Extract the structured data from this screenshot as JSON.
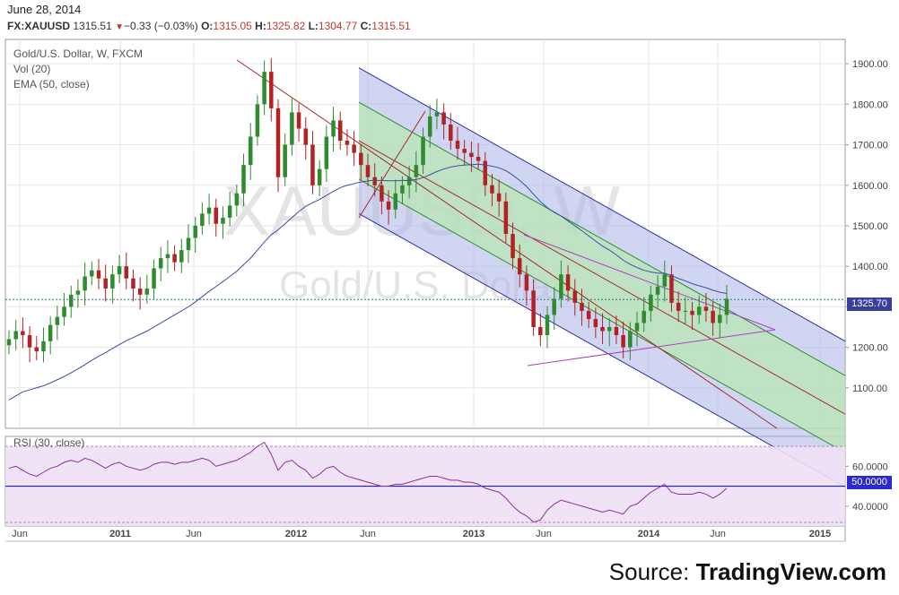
{
  "header": {
    "date": "June 28, 2014",
    "symbol": "FX:XAUUSD",
    "last": "1315.51",
    "change": "−0.33 (−0.03%)",
    "open_label": "O:",
    "open": "1315.05",
    "high_label": "H:",
    "high": "1325.82",
    "low_label": "L:",
    "low": "1304.77",
    "close_label": "C:",
    "close": "1315.51"
  },
  "legend": {
    "title": "Gold/U.S. Dollar, W, FXCM",
    "vol": "Vol (20)",
    "ema": "EMA (50, close)",
    "rsi": "RSI (30, close)"
  },
  "watermark": {
    "big": "XAUUSD, W",
    "small": "Gold/U.S. Dollar"
  },
  "price_tag": "1325.70",
  "rsi_tag": "50.0000",
  "source": {
    "prefix": "Source: ",
    "brand": "TradingView.com"
  },
  "colors": {
    "up": "#2e8b2e",
    "down": "#b22222",
    "ema": "#3a4fa0",
    "rsi": "#8e2b9e",
    "channel_outer": "#2c2ca8",
    "channel_inner": "#2e8b2e",
    "trend": "#a52a2a",
    "triangle": "#b040c0"
  },
  "chart_data": [
    {
      "type": "candlestick",
      "title": "Gold/U.S. Dollar, W, FXCM",
      "x_ticks": [
        "Jun",
        "2011",
        "Jun",
        "2012",
        "Jun",
        "2013",
        "Jun",
        "2014",
        "Jun",
        "2015"
      ],
      "y_ticks": [
        "1100.00",
        "1200.00",
        "1300.00",
        "1400.00",
        "1500.00",
        "1600.00",
        "1700.00",
        "1800.00",
        "1900.00"
      ],
      "ylim": [
        1000,
        1960
      ],
      "closes": [
        1220,
        1240,
        1230,
        1200,
        1190,
        1215,
        1255,
        1275,
        1300,
        1330,
        1340,
        1375,
        1390,
        1370,
        1345,
        1380,
        1400,
        1370,
        1345,
        1330,
        1345,
        1395,
        1420,
        1430,
        1410,
        1440,
        1470,
        1500,
        1530,
        1545,
        1505,
        1520,
        1550,
        1580,
        1650,
        1720,
        1800,
        1880,
        1790,
        1620,
        1700,
        1780,
        1740,
        1700,
        1600,
        1640,
        1720,
        1760,
        1710,
        1700,
        1680,
        1650,
        1620,
        1600,
        1560,
        1540,
        1580,
        1600,
        1620,
        1650,
        1720,
        1770,
        1780,
        1750,
        1710,
        1690,
        1680,
        1670,
        1660,
        1600,
        1580,
        1560,
        1480,
        1420,
        1380,
        1340,
        1250,
        1230,
        1280,
        1320,
        1380,
        1340,
        1310,
        1290,
        1270,
        1250,
        1240,
        1250,
        1230,
        1200,
        1240,
        1260,
        1290,
        1330,
        1350,
        1380,
        1310,
        1290,
        1290,
        1280,
        1300,
        1290,
        1260,
        1280,
        1320
      ],
      "series": [
        {
          "name": "EMA (50, close)",
          "values": [
            1070,
            1080,
            1090,
            1095,
            1100,
            1105,
            1112,
            1120,
            1128,
            1137,
            1147,
            1157,
            1168,
            1178,
            1187,
            1197,
            1207,
            1216,
            1224,
            1232,
            1240,
            1250,
            1260,
            1270,
            1280,
            1290,
            1300,
            1312,
            1325,
            1338,
            1350,
            1362,
            1375,
            1388,
            1404,
            1420,
            1440,
            1460,
            1478,
            1490,
            1505,
            1520,
            1535,
            1548,
            1557,
            1565,
            1575,
            1585,
            1594,
            1600,
            1604,
            1608,
            1611,
            1612,
            1612,
            1611,
            1611,
            1612,
            1612,
            1614,
            1619,
            1626,
            1634,
            1640,
            1645,
            1648,
            1650,
            1651,
            1652,
            1650,
            1647,
            1643,
            1636,
            1625,
            1612,
            1597,
            1578,
            1560,
            1545,
            1533,
            1524,
            1512,
            1500,
            1488,
            1475,
            1462,
            1450,
            1440,
            1428,
            1415,
            1405,
            1397,
            1390,
            1386,
            1383,
            1383,
            1377,
            1370,
            1364,
            1357,
            1352,
            1347,
            1341,
            1336,
            1333
          ]
        }
      ]
    },
    {
      "type": "line",
      "title": "RSI (30, close)",
      "y_ticks": [
        "40.0000",
        "60.0000"
      ],
      "ylim": [
        30,
        75
      ],
      "series": [
        {
          "name": "RSI (30, close)",
          "values": [
            59,
            60,
            58,
            56,
            55,
            57,
            59,
            60,
            62,
            63,
            62,
            64,
            63,
            61,
            59,
            61,
            62,
            60,
            59,
            58,
            59,
            61,
            62,
            62,
            61,
            62,
            62,
            63,
            64,
            63,
            60,
            61,
            62,
            63,
            65,
            67,
            70,
            72,
            66,
            58,
            62,
            63,
            60,
            58,
            54,
            56,
            59,
            60,
            57,
            55,
            54,
            53,
            52,
            51,
            50,
            50,
            51,
            51,
            52,
            53,
            54,
            55,
            55,
            54,
            53,
            53,
            52,
            52,
            51,
            49,
            48,
            47,
            44,
            40,
            37,
            35,
            32,
            33,
            38,
            41,
            43,
            42,
            41,
            40,
            39,
            38,
            37,
            38,
            37,
            36,
            40,
            41,
            44,
            47,
            49,
            51,
            47,
            46,
            46,
            46,
            47,
            46,
            44,
            46,
            49
          ]
        }
      ]
    }
  ]
}
